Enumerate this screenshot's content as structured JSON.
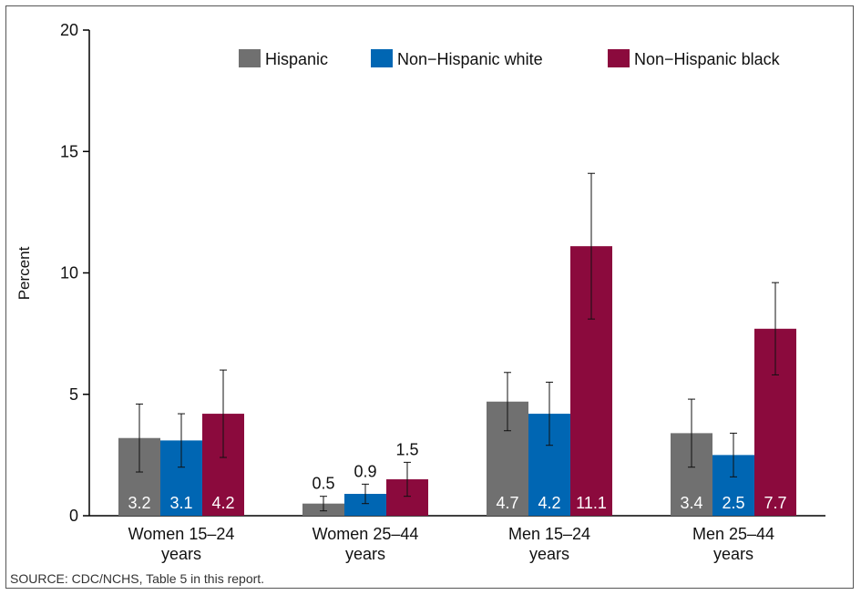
{
  "source": "SOURCE: CDC/NCHS, Table 5 in this report.",
  "colors": {
    "Hispanic": "#707070",
    "Non−Hispanic white": "#0066b3",
    "Non−Hispanic black": "#8b0a3d"
  },
  "chart_data": {
    "type": "bar",
    "title": "",
    "xlabel": "",
    "ylabel": "Percent",
    "ylim": [
      0,
      20
    ],
    "yticks": [
      0,
      5,
      10,
      15,
      20
    ],
    "grid": false,
    "legend_position": "top-right",
    "categories": [
      [
        "Women 15–24",
        "years"
      ],
      [
        "Women 25–44",
        "years"
      ],
      [
        "Men 15–24",
        "years"
      ],
      [
        "Men 25–44",
        "years"
      ]
    ],
    "series": [
      {
        "name": "Hispanic",
        "values": [
          3.2,
          0.5,
          4.7,
          3.4
        ],
        "labels": [
          "3.2",
          "0.5",
          "4.7",
          "3.4"
        ],
        "ci_low": [
          1.8,
          0.2,
          3.5,
          2.0
        ],
        "ci_high": [
          4.6,
          0.8,
          5.9,
          4.8
        ]
      },
      {
        "name": "Non−Hispanic white",
        "values": [
          3.1,
          0.9,
          4.2,
          2.5
        ],
        "labels": [
          "3.1",
          "0.9",
          "4.2",
          "2.5"
        ],
        "ci_low": [
          2.0,
          0.5,
          2.9,
          1.6
        ],
        "ci_high": [
          4.2,
          1.3,
          5.5,
          3.4
        ]
      },
      {
        "name": "Non−Hispanic black",
        "values": [
          4.2,
          1.5,
          11.1,
          7.7
        ],
        "labels": [
          "4.2",
          "1.5",
          "11.1",
          "7.7"
        ],
        "ci_low": [
          2.4,
          0.8,
          8.1,
          5.8
        ],
        "ci_high": [
          6.0,
          2.2,
          14.1,
          9.6
        ]
      }
    ]
  }
}
